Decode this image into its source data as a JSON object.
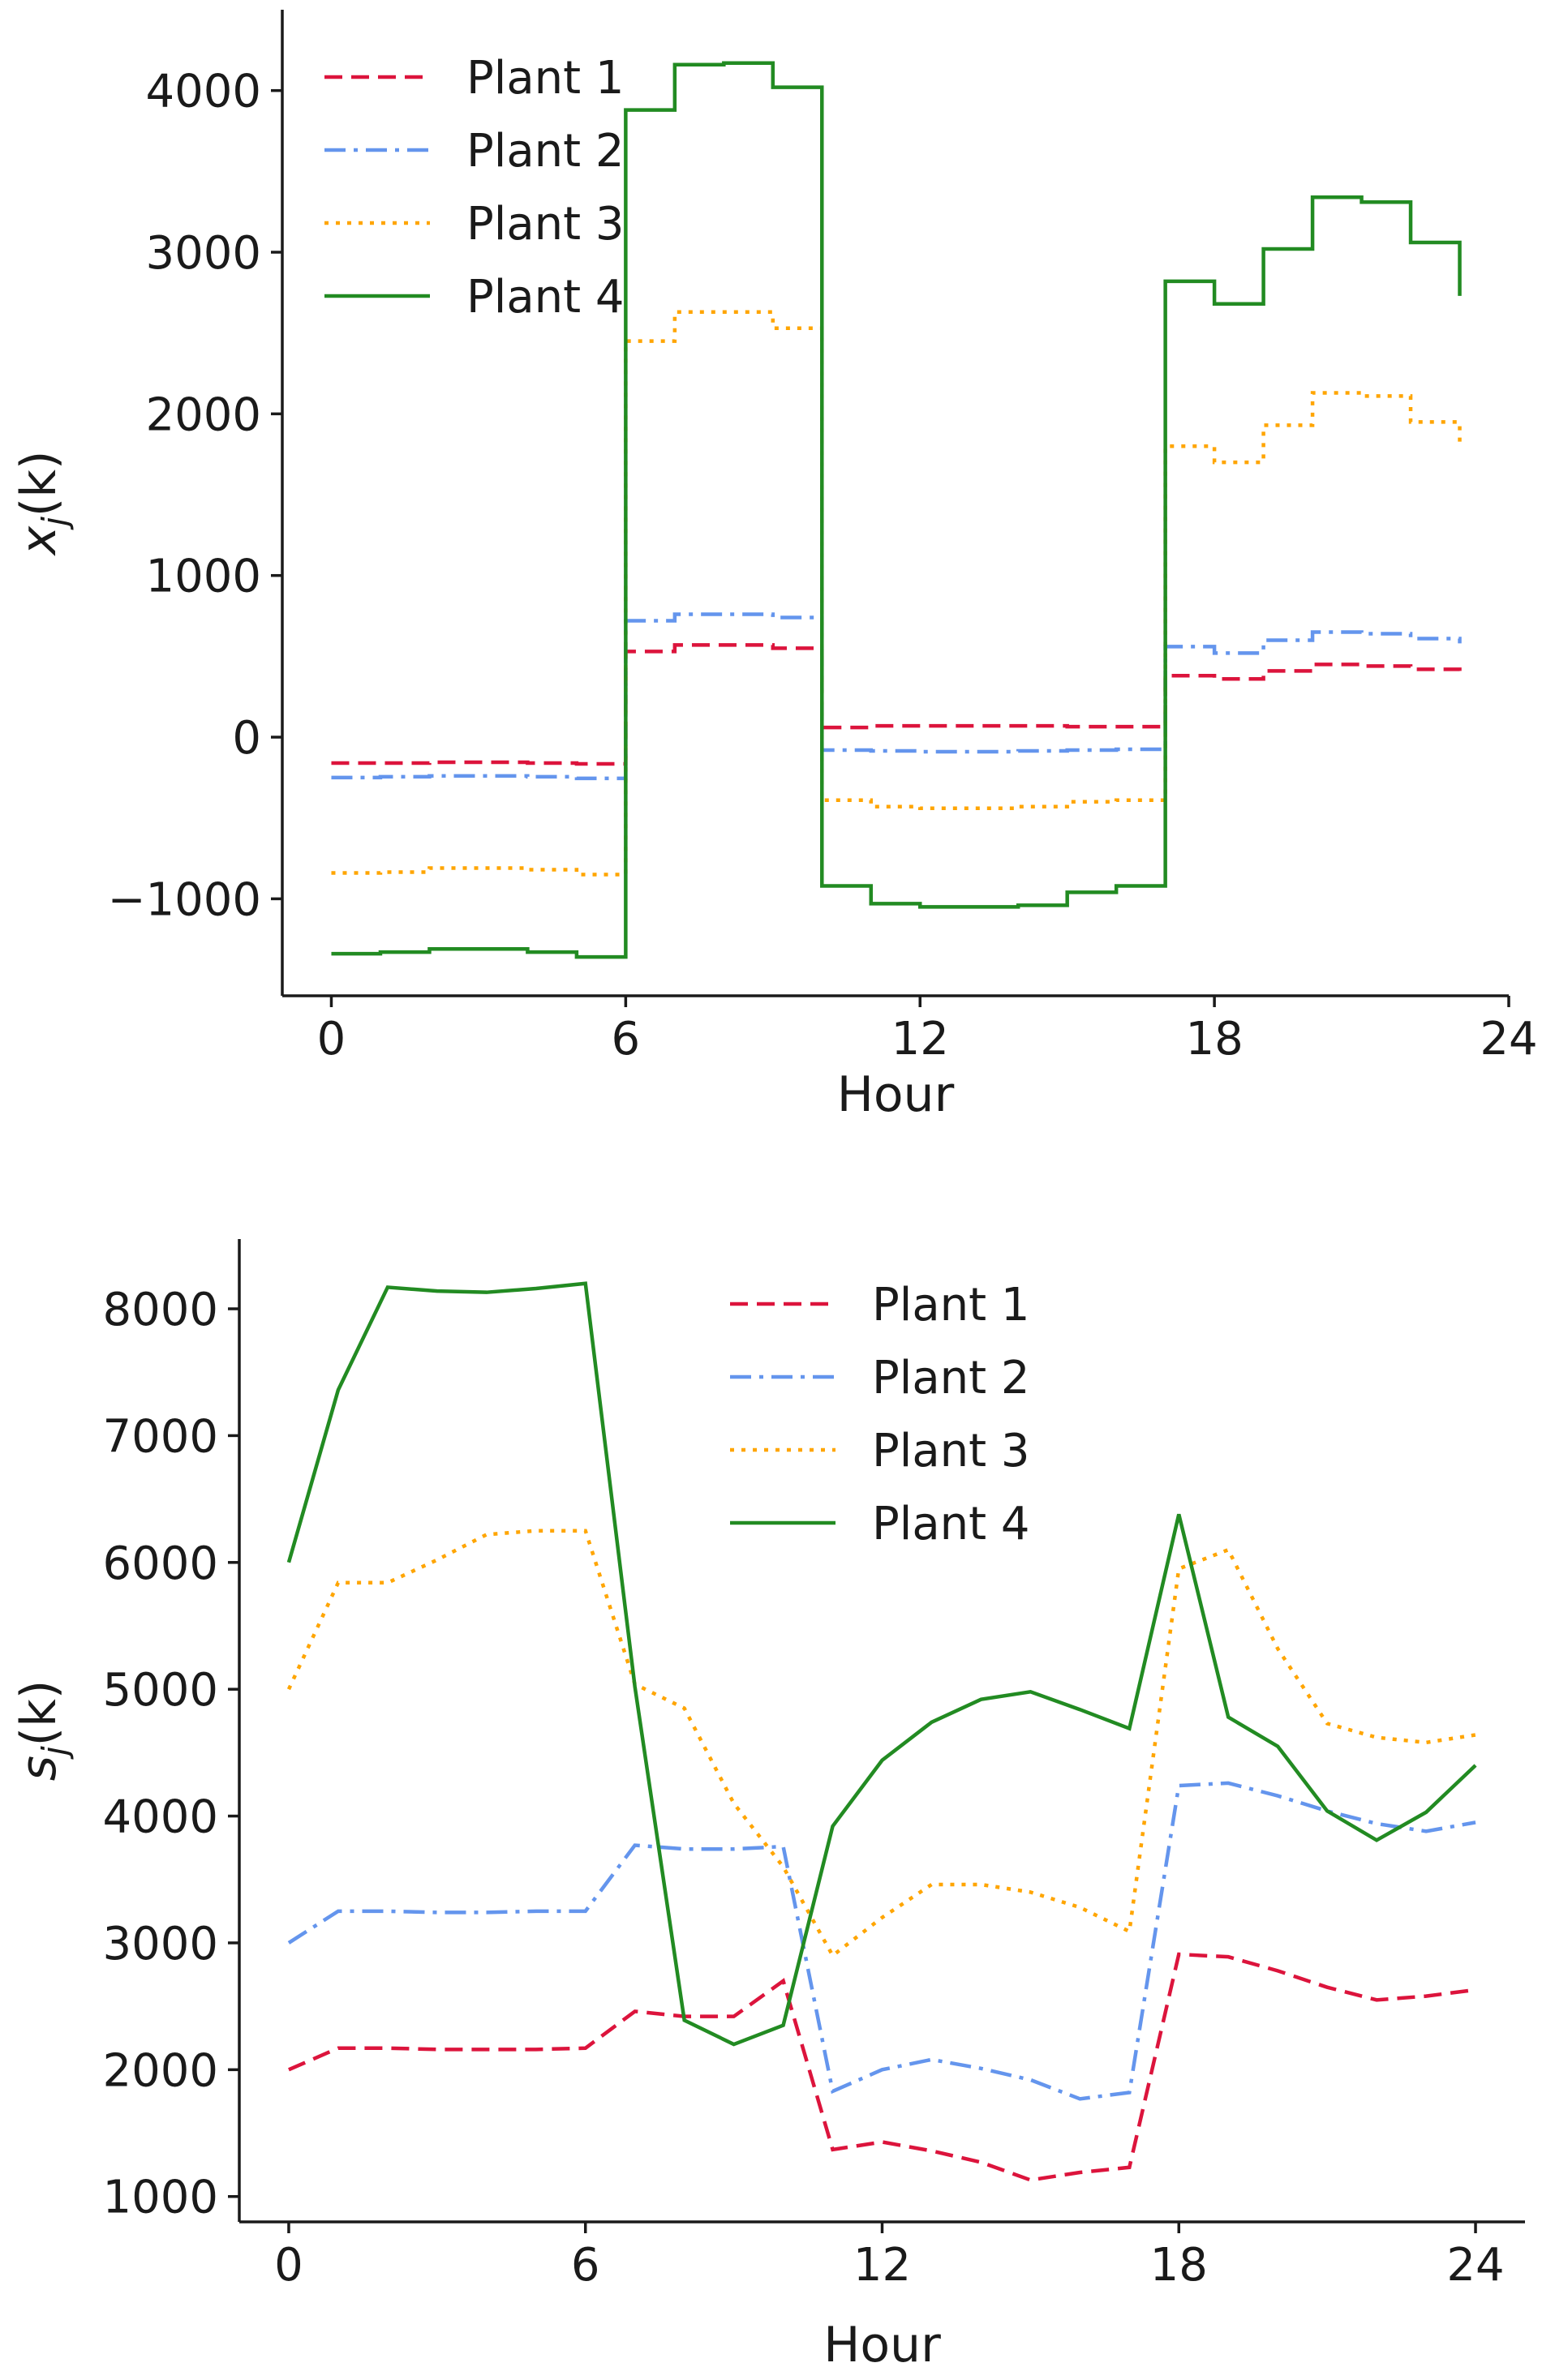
{
  "chart_data": [
    {
      "type": "line",
      "step": true,
      "title": "",
      "xlabel": "Hour",
      "ylabel": "x_j(k)",
      "ylabel_main": "x",
      "ylabel_sub": "j",
      "ylabel_arg": "(k)",
      "xlim": [
        -1,
        24
      ],
      "ylim": [
        -1600,
        4500
      ],
      "xticks": [
        0,
        6,
        12,
        18,
        24
      ],
      "xtick_labels": [
        "0",
        "6",
        "12",
        "18",
        "24"
      ],
      "yticks": [
        -1000,
        0,
        1000,
        2000,
        3000,
        4000
      ],
      "ytick_labels": [
        "−1000",
        "0",
        "1000",
        "2000",
        "3000",
        "4000"
      ],
      "legend_position": "top-left",
      "x": [
        0,
        1,
        2,
        3,
        4,
        5,
        6,
        7,
        8,
        9,
        10,
        11,
        12,
        13,
        14,
        15,
        16,
        17,
        18,
        19,
        20,
        21,
        22,
        23
      ],
      "series": [
        {
          "name": "Plant 1",
          "color": "#dc143c",
          "style": "dashed",
          "values": [
            -160,
            -160,
            -155,
            -155,
            -160,
            -165,
            530,
            570,
            570,
            550,
            60,
            70,
            70,
            70,
            70,
            65,
            65,
            380,
            360,
            410,
            450,
            440,
            420,
            410
          ]
        },
        {
          "name": "Plant 2",
          "color": "#6495ed",
          "style": "dashdot",
          "values": [
            -250,
            -245,
            -240,
            -240,
            -245,
            -255,
            720,
            760,
            760,
            740,
            -80,
            -85,
            -90,
            -90,
            -85,
            -80,
            -75,
            560,
            520,
            600,
            650,
            640,
            610,
            580
          ]
        },
        {
          "name": "Plant 3",
          "color": "#ffa500",
          "style": "dotted",
          "values": [
            -840,
            -835,
            -810,
            -810,
            -820,
            -850,
            2450,
            2630,
            2630,
            2530,
            -390,
            -430,
            -440,
            -440,
            -430,
            -400,
            -390,
            1800,
            1700,
            1930,
            2130,
            2110,
            1950,
            1800
          ]
        },
        {
          "name": "Plant 4",
          "color": "#228b22",
          "style": "solid",
          "values": [
            -1340,
            -1330,
            -1310,
            -1310,
            -1330,
            -1360,
            3880,
            4160,
            4170,
            4020,
            -920,
            -1030,
            -1050,
            -1050,
            -1040,
            -960,
            -920,
            2820,
            2680,
            3020,
            3340,
            3310,
            3060,
            2730
          ]
        }
      ]
    },
    {
      "type": "line",
      "title": "",
      "xlabel": "Hour",
      "ylabel": "s_j(k)",
      "ylabel_main": "s",
      "ylabel_sub": "j",
      "ylabel_arg": "(k)",
      "xlim": [
        -1,
        25
      ],
      "ylim": [
        800,
        8550
      ],
      "xticks": [
        0,
        6,
        12,
        18,
        24
      ],
      "xtick_labels": [
        "0",
        "6",
        "12",
        "18",
        "24"
      ],
      "yticks": [
        1000,
        2000,
        3000,
        4000,
        5000,
        6000,
        7000,
        8000
      ],
      "ytick_labels": [
        "1000",
        "2000",
        "3000",
        "4000",
        "5000",
        "6000",
        "7000",
        "8000"
      ],
      "legend_position": "top-center",
      "x": [
        0,
        1,
        2,
        3,
        4,
        5,
        6,
        7,
        8,
        9,
        10,
        11,
        12,
        13,
        14,
        15,
        16,
        17,
        18,
        19,
        20,
        21,
        22,
        23,
        24
      ],
      "series": [
        {
          "name": "Plant 1",
          "color": "#dc143c",
          "style": "dashed",
          "values": [
            2000,
            2170,
            2170,
            2160,
            2160,
            2160,
            2170,
            2460,
            2420,
            2420,
            2700,
            1370,
            1430,
            1360,
            1270,
            1130,
            1190,
            1230,
            2910,
            2890,
            2780,
            2650,
            2550,
            2580,
            2630
          ]
        },
        {
          "name": "Plant 2",
          "color": "#6495ed",
          "style": "dashdot",
          "values": [
            3000,
            3250,
            3250,
            3240,
            3240,
            3250,
            3250,
            3770,
            3740,
            3740,
            3760,
            1830,
            2000,
            2080,
            2010,
            1920,
            1770,
            1820,
            4240,
            4260,
            4160,
            4040,
            3940,
            3880,
            3950
          ]
        },
        {
          "name": "Plant 3",
          "color": "#ffa500",
          "style": "dotted",
          "values": [
            5000,
            5840,
            5840,
            6020,
            6220,
            6250,
            6250,
            5040,
            4850,
            4100,
            3600,
            2900,
            3200,
            3460,
            3460,
            3400,
            3280,
            3090,
            5950,
            6100,
            5320,
            4730,
            4620,
            4580,
            4640
          ]
        },
        {
          "name": "Plant 4",
          "color": "#228b22",
          "style": "solid",
          "values": [
            6000,
            7360,
            8170,
            8140,
            8130,
            8160,
            8200,
            5020,
            2390,
            2200,
            2350,
            3920,
            4440,
            4740,
            4920,
            4980,
            4840,
            4690,
            6380,
            4780,
            4550,
            4040,
            3810,
            4030,
            4400
          ]
        }
      ]
    }
  ]
}
